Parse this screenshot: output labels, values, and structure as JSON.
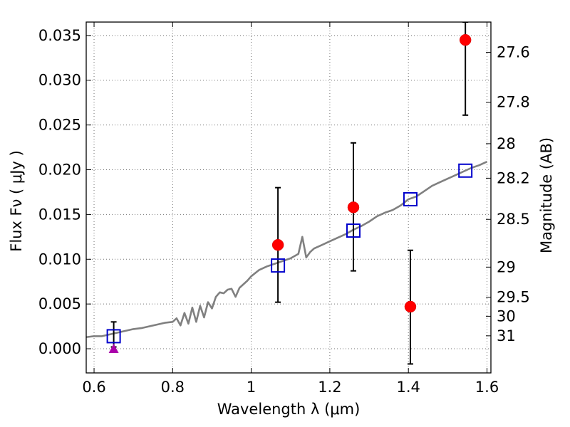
{
  "chart_data": {
    "type": "scatter",
    "xlabel": "Wavelength  λ (μm)",
    "ylabel": "Flux  Fν  ( μJy )",
    "ylabel_right": "Magnitude (AB)",
    "xlim": [
      0.58,
      1.61
    ],
    "ylim": [
      -0.0027,
      0.0365
    ],
    "grid": true,
    "x_ticks": [
      {
        "value": 0.6,
        "label": "0.6"
      },
      {
        "value": 0.8,
        "label": "0.8"
      },
      {
        "value": 1.0,
        "label": "1"
      },
      {
        "value": 1.2,
        "label": "1.2"
      },
      {
        "value": 1.4,
        "label": "1.4"
      },
      {
        "value": 1.6,
        "label": "1.6"
      }
    ],
    "y_ticks": [
      {
        "value": 0.0,
        "label": "0.000"
      },
      {
        "value": 0.005,
        "label": "0.005"
      },
      {
        "value": 0.01,
        "label": "0.010"
      },
      {
        "value": 0.015,
        "label": "0.015"
      },
      {
        "value": 0.02,
        "label": "0.020"
      },
      {
        "value": 0.025,
        "label": "0.025"
      },
      {
        "value": 0.03,
        "label": "0.030"
      },
      {
        "value": 0.035,
        "label": "0.035"
      }
    ],
    "right_ticks": [
      {
        "mag": 27.6,
        "label": "27.6"
      },
      {
        "mag": 27.8,
        "label": "27.8"
      },
      {
        "mag": 28.0,
        "label": "28"
      },
      {
        "mag": 28.2,
        "label": "28.2"
      },
      {
        "mag": 28.5,
        "label": "28.5"
      },
      {
        "mag": 29.0,
        "label": "29"
      },
      {
        "mag": 29.5,
        "label": "29.5"
      },
      {
        "mag": 30.0,
        "label": "30"
      },
      {
        "mag": 31.0,
        "label": "31"
      }
    ],
    "series": [
      {
        "kind": "line",
        "color": "#808080",
        "x": [
          0.58,
          0.6,
          0.62,
          0.64,
          0.66,
          0.68,
          0.7,
          0.72,
          0.74,
          0.76,
          0.78,
          0.8,
          0.81,
          0.82,
          0.83,
          0.84,
          0.85,
          0.86,
          0.87,
          0.88,
          0.89,
          0.9,
          0.91,
          0.92,
          0.93,
          0.94,
          0.95,
          0.96,
          0.97,
          0.98,
          0.99,
          1.0,
          1.02,
          1.04,
          1.06,
          1.08,
          1.1,
          1.12,
          1.13,
          1.14,
          1.15,
          1.16,
          1.18,
          1.2,
          1.22,
          1.24,
          1.26,
          1.28,
          1.3,
          1.32,
          1.34,
          1.36,
          1.38,
          1.4,
          1.42,
          1.44,
          1.46,
          1.48,
          1.5,
          1.52,
          1.54,
          1.56,
          1.58,
          1.6
        ],
        "y": [
          0.0013,
          0.0014,
          0.0014,
          0.0016,
          0.0018,
          0.002,
          0.0022,
          0.0023,
          0.0025,
          0.0027,
          0.0029,
          0.003,
          0.0034,
          0.0026,
          0.004,
          0.0028,
          0.0046,
          0.003,
          0.0048,
          0.0035,
          0.0052,
          0.0045,
          0.0058,
          0.0063,
          0.0062,
          0.0066,
          0.0067,
          0.0058,
          0.0068,
          0.0072,
          0.0076,
          0.0081,
          0.0088,
          0.0092,
          0.0095,
          0.0098,
          0.0101,
          0.0106,
          0.0125,
          0.0102,
          0.0108,
          0.0112,
          0.0116,
          0.012,
          0.0124,
          0.0128,
          0.0133,
          0.0137,
          0.0142,
          0.0148,
          0.0152,
          0.0155,
          0.016,
          0.0167,
          0.017,
          0.0176,
          0.0182,
          0.0186,
          0.019,
          0.0194,
          0.0198,
          0.0202,
          0.0205,
          0.0209
        ]
      },
      {
        "kind": "points-errorbars",
        "color": "#ff0000",
        "points": [
          {
            "x": 0.65,
            "y": 0.0014,
            "yerr_low": 0.0002,
            "yerr_high": 0.003
          },
          {
            "x": 1.068,
            "y": 0.0116,
            "yerr_low": 0.0052,
            "yerr_high": 0.018
          },
          {
            "x": 1.26,
            "y": 0.0158,
            "yerr_low": 0.0087,
            "yerr_high": 0.023
          },
          {
            "x": 1.405,
            "y": 0.0047,
            "yerr_low": -0.0017,
            "yerr_high": 0.011
          },
          {
            "x": 1.545,
            "y": 0.0345,
            "yerr_low": 0.0261,
            "yerr_high": 0.0365
          }
        ]
      },
      {
        "kind": "open-squares",
        "color": "#0000cc",
        "points": [
          {
            "x": 0.65,
            "y": 0.0014
          },
          {
            "x": 1.068,
            "y": 0.0093
          },
          {
            "x": 1.26,
            "y": 0.0132
          },
          {
            "x": 1.405,
            "y": 0.0167
          },
          {
            "x": 1.545,
            "y": 0.0199
          }
        ]
      },
      {
        "kind": "triangle",
        "color": "#aa00aa",
        "points": [
          {
            "x": 0.65,
            "y": 0.0
          }
        ]
      }
    ]
  }
}
